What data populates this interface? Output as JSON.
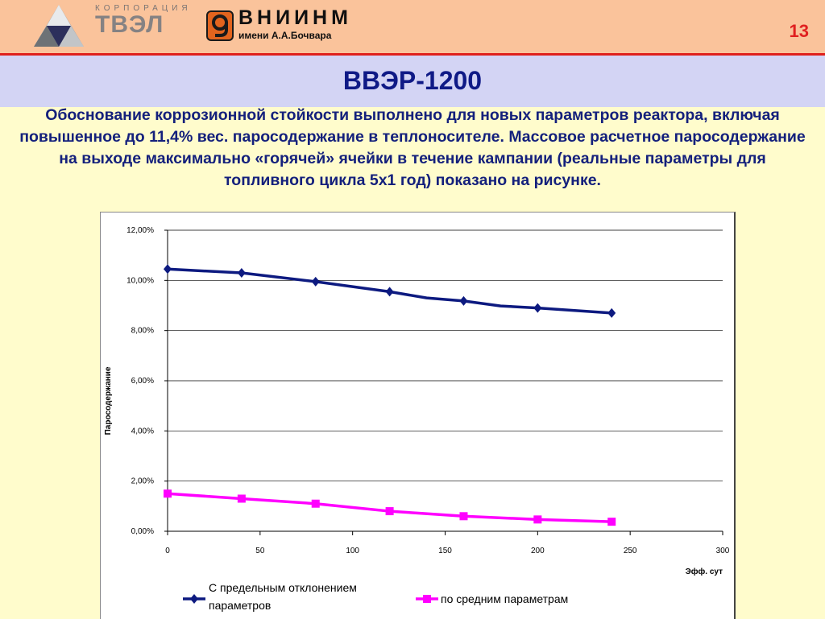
{
  "header": {
    "tvel_label": "КОРПОРАЦИЯ",
    "tvel_name": "ТВЭЛ",
    "vniinm_name": "ВНИИНМ",
    "vniinm_sub": "имени А.А.Бочвара",
    "slide_number": "13"
  },
  "title": "ВВЭР-1200",
  "body_text": "Обоснование коррозионной стойкости выполнено для новых параметров реактора, включая повышенное до 11,4% вес. паросодержание в теплоносителе. Массовое расчетное паросодержание на выходе максимально «горячей» ячейки в течение кампании (реальные параметры для топливного цикла 5х1 год) показано на рисунке.",
  "colors": {
    "series_1": "#0d1a80",
    "series_2": "#ff00ff",
    "header_bg": "#fac39b",
    "title_band": "#d3d4f4",
    "body_bg": "#fffccc",
    "accent_red": "#e0201b",
    "text_blue": "#14207c"
  },
  "chart_data": {
    "type": "line",
    "xlabel": "Эфф. сут",
    "ylabel": "Паросодержание",
    "xlim": [
      0,
      300
    ],
    "ylim": [
      0,
      12
    ],
    "x_ticks": [
      "0",
      "50",
      "100",
      "150",
      "200",
      "250",
      "300"
    ],
    "y_ticks": [
      "0,00%",
      "2,00%",
      "4,00%",
      "6,00%",
      "8,00%",
      "10,00%",
      "12,00%"
    ],
    "grid": "horizontal",
    "legend_position": "bottom",
    "series": [
      {
        "name": "С предельным отклонением параметров",
        "marker": "diamond",
        "x": [
          0,
          40,
          80,
          120,
          140,
          160,
          180,
          200,
          220,
          240
        ],
        "y": [
          10.45,
          10.3,
          9.95,
          9.55,
          9.3,
          9.18,
          8.98,
          8.9,
          8.8,
          8.7
        ],
        "marker_x": [
          0,
          40,
          80,
          120,
          160,
          200,
          240
        ]
      },
      {
        "name": "по средним параметрам",
        "marker": "square",
        "x": [
          0,
          40,
          80,
          120,
          160,
          200,
          240
        ],
        "y": [
          1.5,
          1.3,
          1.1,
          0.8,
          0.6,
          0.47,
          0.38
        ],
        "marker_x": [
          0,
          40,
          80,
          120,
          160,
          200,
          240
        ]
      }
    ]
  }
}
